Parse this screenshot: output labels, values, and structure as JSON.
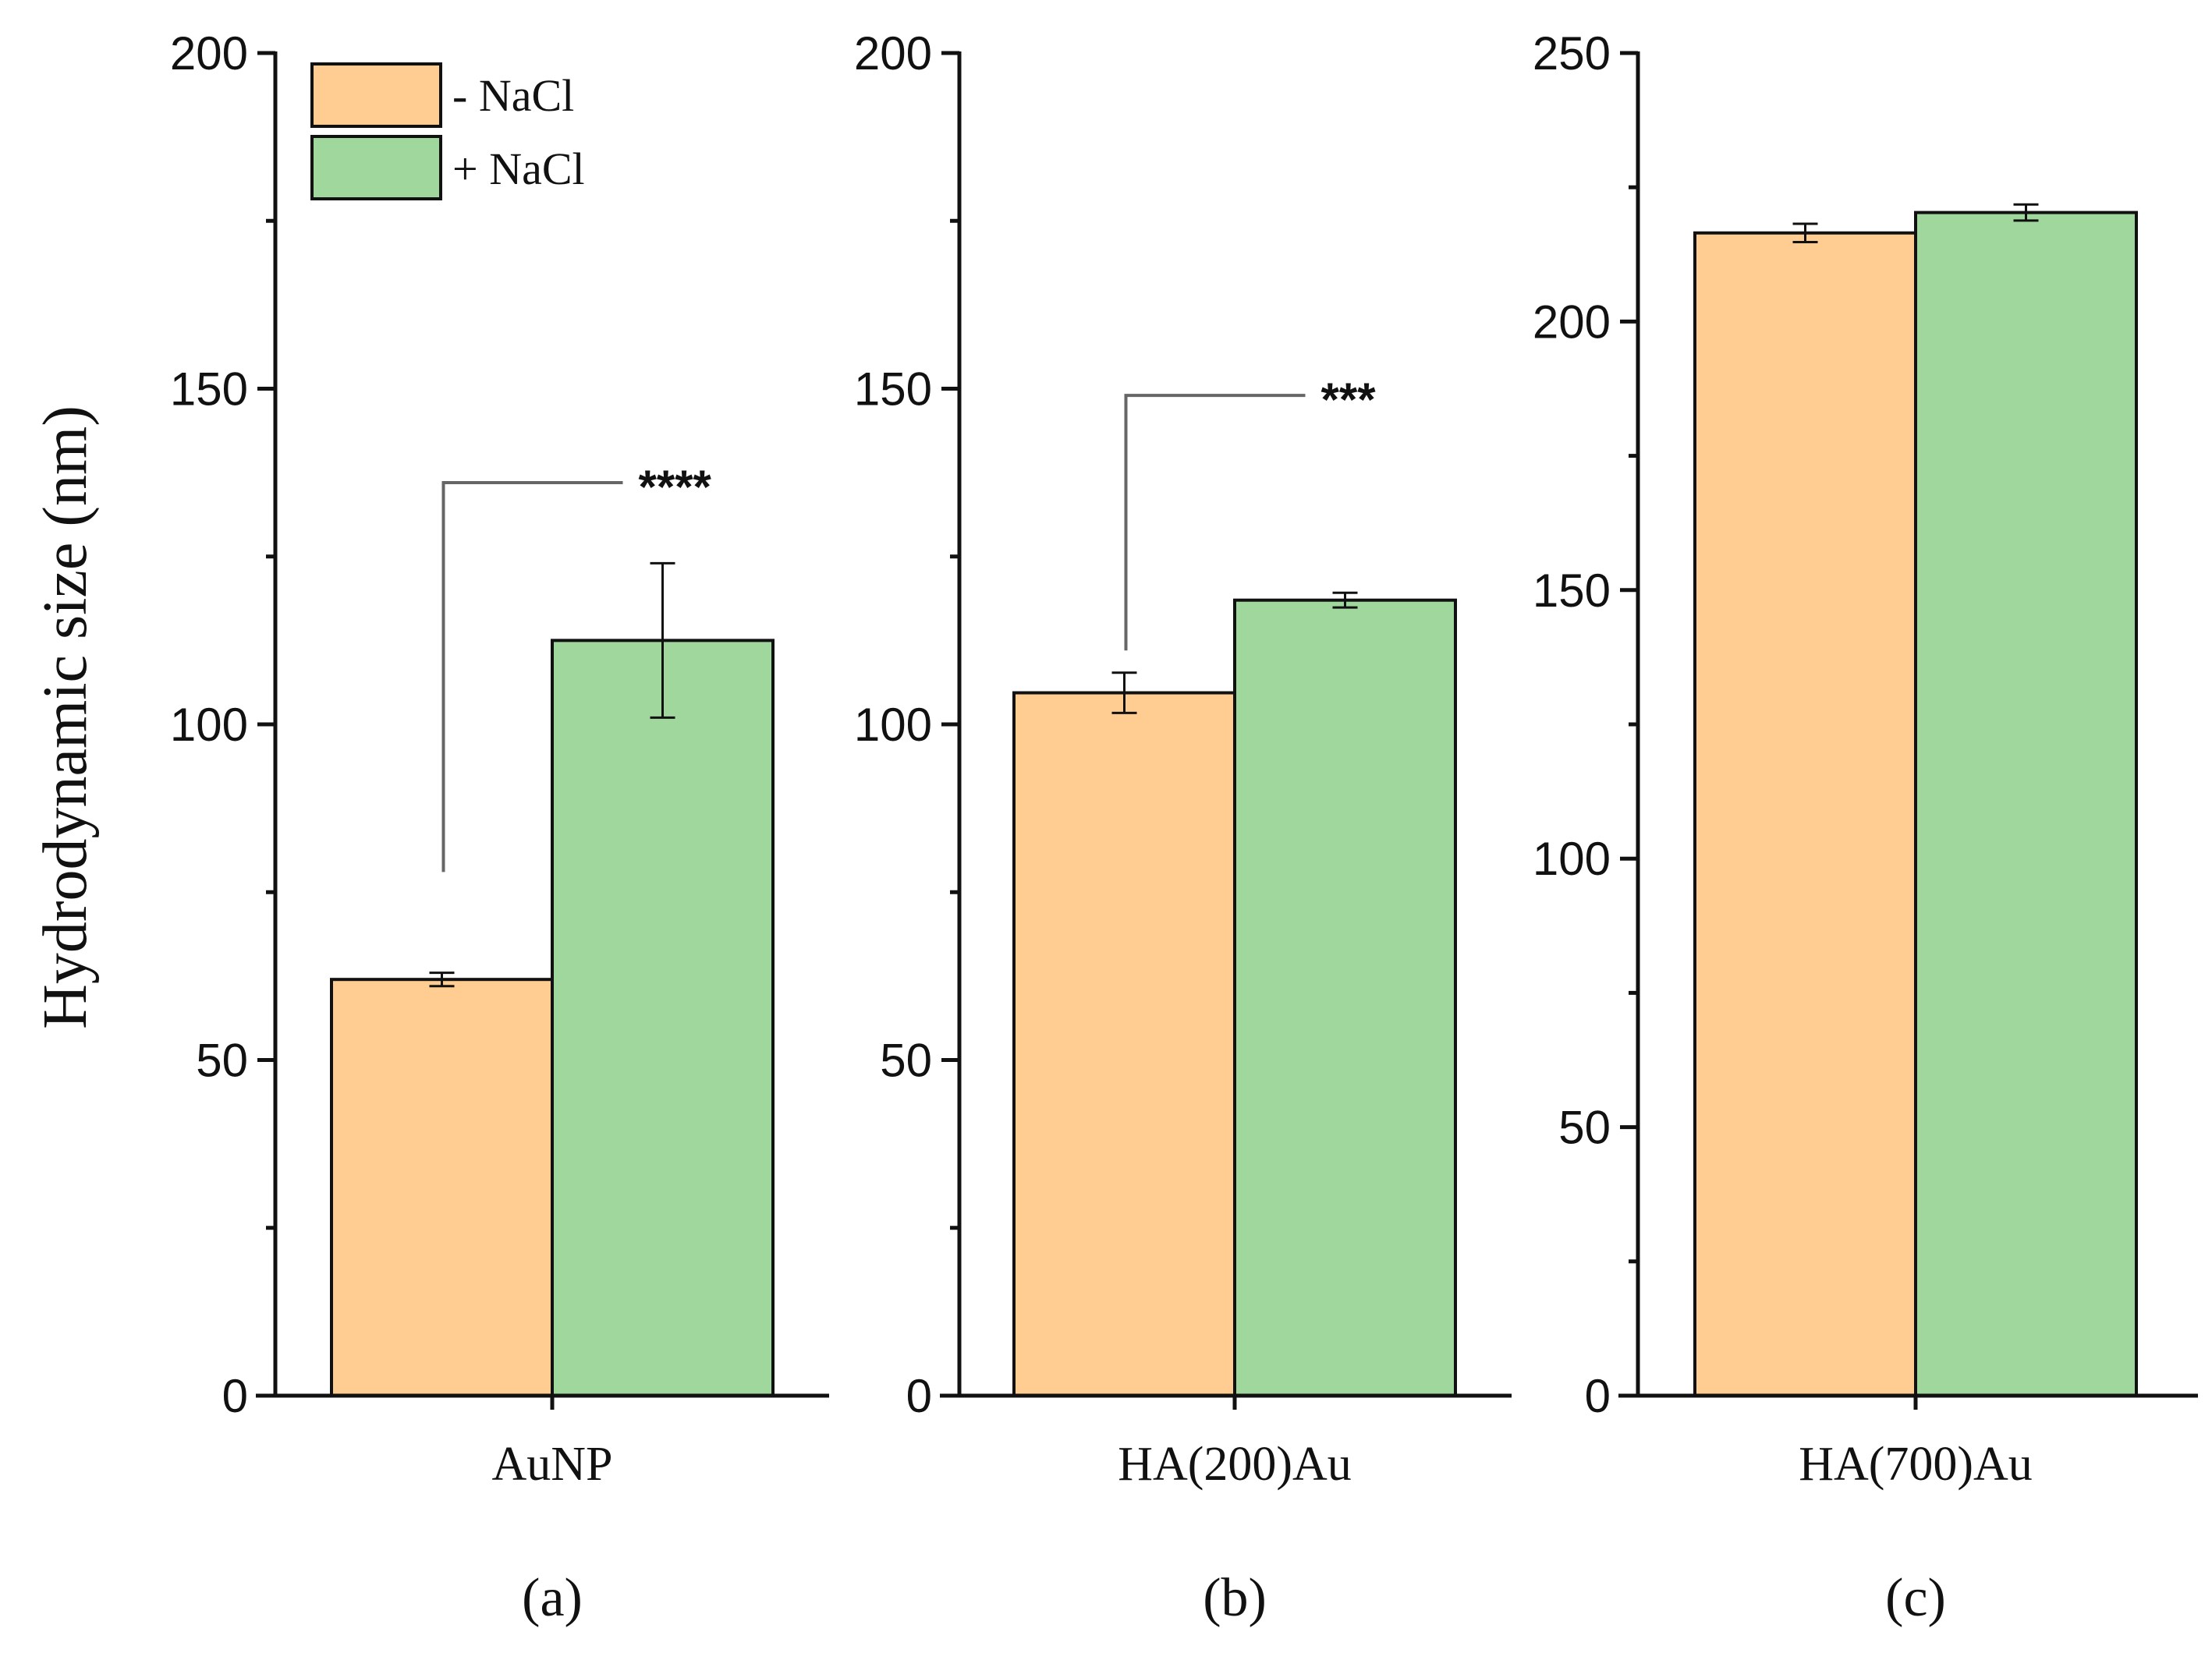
{
  "y_axis_title": "Hydrodynamic size (nm)",
  "legend": [
    {
      "label": "- NaCl",
      "color": "#FFCC91"
    },
    {
      "label": "+ NaCl",
      "color": "#9FD79D"
    }
  ],
  "colors": {
    "minus_nacl": "#FFCC91",
    "plus_nacl": "#9FD79D",
    "axis": "#111111",
    "bracket": "#666666"
  },
  "chart_data": [
    {
      "type": "bar",
      "panel_label": "(a)",
      "categories": [
        "AuNP"
      ],
      "series": [
        {
          "name": "- NaCl",
          "values": [
            62
          ],
          "errors": [
            1.0
          ]
        },
        {
          "name": "+ NaCl",
          "values": [
            112.5
          ],
          "errors": [
            11.5
          ]
        }
      ],
      "ylim": [
        0,
        200
      ],
      "yticks": [
        0,
        50,
        100,
        150,
        200
      ],
      "ytick_labels": [
        "0",
        "50",
        "100",
        "150",
        "200"
      ],
      "ylabel": "Hydrodynamic size (nm)",
      "significance": {
        "label": "****",
        "bracket_top": 136,
        "from_value": 78
      }
    },
    {
      "type": "bar",
      "panel_label": "(b)",
      "categories": [
        "HA(200)Au"
      ],
      "series": [
        {
          "name": "- NaCl",
          "values": [
            104.7
          ],
          "errors": [
            3.0
          ]
        },
        {
          "name": "+ NaCl",
          "values": [
            118.5
          ],
          "errors": [
            1.1
          ]
        }
      ],
      "ylim": [
        0,
        200
      ],
      "yticks": [
        0,
        50,
        100,
        150,
        200
      ],
      "ytick_labels": [
        "0",
        "50",
        "100",
        "150",
        "200"
      ],
      "significance": {
        "label": "***",
        "bracket_top": 149,
        "from_value": 111
      }
    },
    {
      "type": "bar",
      "panel_label": "(c)",
      "categories": [
        "HA(700)Au"
      ],
      "series": [
        {
          "name": "- NaCl",
          "values": [
            216.5
          ],
          "errors": [
            1.7
          ]
        },
        {
          "name": "+ NaCl",
          "values": [
            220.3
          ],
          "errors": [
            1.5
          ]
        }
      ],
      "ylim": [
        0,
        250
      ],
      "yticks": [
        0,
        50,
        100,
        150,
        200,
        250
      ],
      "ytick_labels": [
        "0",
        "50",
        "100",
        "150",
        "200",
        "250"
      ]
    }
  ]
}
